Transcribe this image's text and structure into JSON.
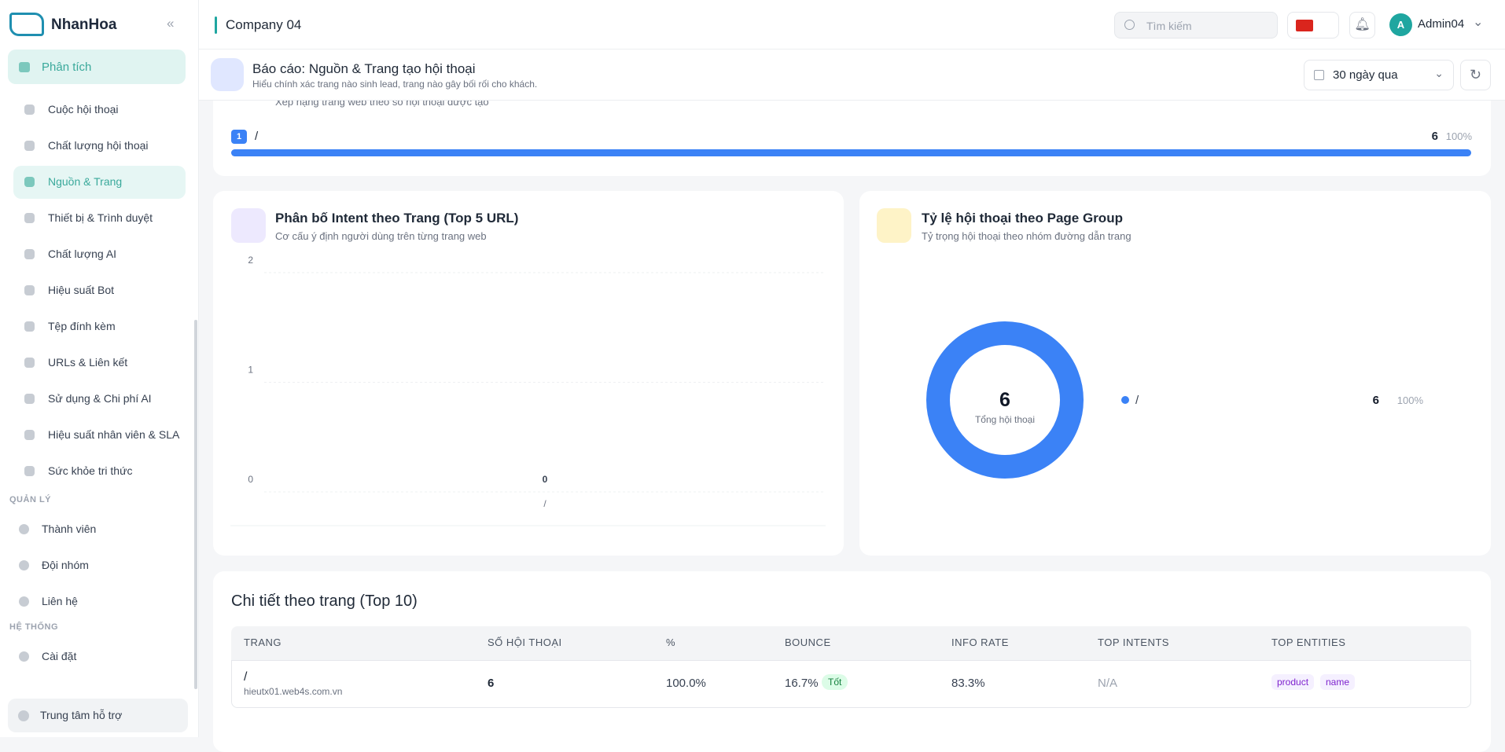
{
  "brand": "NhanHoa",
  "topbar": {
    "company": "Company 04",
    "search": "Tìm kiếm",
    "user_initial": "A",
    "user": "Admin04"
  },
  "sidebar": {
    "group": "Phân tích",
    "items": [
      "Cuộc hội thoại",
      "Chất lượng hội thoại",
      "Nguồn & Trang",
      "Thiết bị & Trình duyệt",
      "Chất lượng AI",
      "Hiệu suất Bot",
      "Tệp đính kèm",
      "URLs & Liên kết",
      "Sử dụng & Chi phí AI",
      "Hiệu suất nhân viên & SLA",
      "Sức khỏe tri thức"
    ],
    "sections": [
      {
        "title": "QUẢN LÝ",
        "items": [
          "Thành viên",
          "Đội nhóm",
          "Liên hệ"
        ]
      },
      {
        "title": "HỆ THỐNG",
        "items": [
          "Cài đặt"
        ]
      }
    ],
    "support": "Trung tâm hỗ trợ"
  },
  "header": {
    "title": "Báo cáo: Nguồn & Trang tạo hội thoại",
    "subtitle": "Hiểu chính xác trang nào sinh lead, trang nào gây bối rối cho khách.",
    "range": "30 ngày qua"
  },
  "ranking": {
    "subtitle": "Xếp hạng trang web theo số hội thoại được tạo",
    "rows": [
      {
        "rank": 1,
        "page": "/",
        "count": 6,
        "percent": "100%"
      }
    ]
  },
  "intent_chart": {
    "type": "bar",
    "title": "Phân bố Intent theo Trang (Top 5 URL)",
    "subtitle": "Cơ cấu ý định người dùng trên từng trang web",
    "categories": [
      "/"
    ],
    "values": [
      0
    ],
    "ylim": [
      0,
      2
    ],
    "yticks": [
      0,
      1,
      2
    ],
    "grid": true
  },
  "group_chart": {
    "type": "donut",
    "title": "Tỷ lệ hội thoại theo Page Group",
    "subtitle": "Tỷ trọng hội thoại theo nhóm đường dẫn trang",
    "total": 6,
    "total_label": "Tổng hội thoại",
    "slices": [
      {
        "name": "/",
        "value": 6,
        "percent": "100%",
        "color": "#3b82f6"
      }
    ]
  },
  "table": {
    "title": "Chi tiết theo trang (Top 10)",
    "columns": [
      "TRANG",
      "SỐ HỘI THOẠI",
      "%",
      "BOUNCE",
      "INFO RATE",
      "TOP INTENTS",
      "TOP ENTITIES"
    ],
    "rows": [
      {
        "page": "/",
        "domain": "hieutx01.web4s.com.vn",
        "count": 6,
        "percent": "100.0%",
        "bounce": "16.7%",
        "bounce_badge": "Tốt",
        "info_rate": "83.3%",
        "top_intents": "N/A",
        "top_entities": [
          "product",
          "name"
        ]
      }
    ]
  }
}
